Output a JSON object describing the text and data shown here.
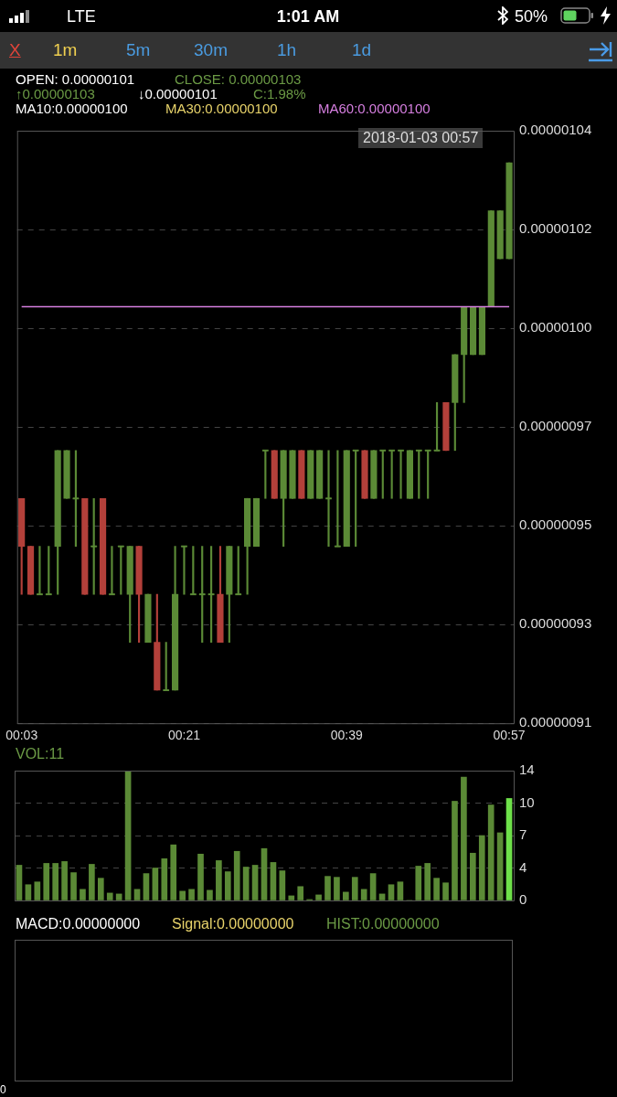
{
  "chart_data": [
    {
      "type": "candlestick",
      "categories": [
        "00:03",
        null,
        null,
        null,
        null,
        null,
        null,
        null,
        null,
        null,
        null,
        null,
        null,
        null,
        null,
        null,
        null,
        null,
        "00:21",
        null,
        null,
        null,
        null,
        null,
        null,
        null,
        null,
        null,
        null,
        null,
        null,
        null,
        null,
        null,
        null,
        null,
        "00:39",
        null,
        null,
        null,
        null,
        null,
        null,
        null,
        null,
        null,
        null,
        null,
        null,
        null,
        null,
        null,
        null,
        null,
        "00:57"
      ],
      "series": [
        {
          "type": "candlestick",
          "ohlc": [
            [
              9.6e-07,
              9.6e-07,
              9.4e-07,
              9.5e-07
            ],
            [
              9.5e-07,
              9.5e-07,
              9.4e-07,
              9.4e-07
            ],
            [
              9.4e-07,
              9.5e-07,
              9.4e-07,
              9.4e-07
            ],
            [
              9.4e-07,
              9.5e-07,
              9.4e-07,
              9.4e-07
            ],
            [
              9.5e-07,
              9.7e-07,
              9.4e-07,
              9.7e-07
            ],
            [
              9.6e-07,
              9.7e-07,
              9.6e-07,
              9.7e-07
            ],
            [
              9.6e-07,
              9.7e-07,
              9.5e-07,
              9.6e-07
            ],
            [
              9.6e-07,
              9.6e-07,
              9.4e-07,
              9.4e-07
            ],
            [
              9.5e-07,
              9.6e-07,
              9.4e-07,
              9.5e-07
            ],
            [
              9.6e-07,
              9.6e-07,
              9.4e-07,
              9.4e-07
            ],
            [
              9.4e-07,
              9.5e-07,
              9.4e-07,
              9.4e-07
            ],
            [
              9.5e-07,
              9.5e-07,
              9.4e-07,
              9.5e-07
            ],
            [
              9.4e-07,
              9.5e-07,
              9.3e-07,
              9.5e-07
            ],
            [
              9.5e-07,
              9.5e-07,
              9.3e-07,
              9.4e-07
            ],
            [
              9.3e-07,
              9.4e-07,
              9.3e-07,
              9.4e-07
            ],
            [
              9.3e-07,
              9.4e-07,
              9.2e-07,
              9.2e-07
            ],
            [
              9.2e-07,
              9.3e-07,
              9.2e-07,
              9.2e-07
            ],
            [
              9.2e-07,
              9.5e-07,
              9.2e-07,
              9.4e-07
            ],
            [
              9.5e-07,
              9.5e-07,
              9.4e-07,
              9.5e-07
            ],
            [
              9.4e-07,
              9.5e-07,
              9.4e-07,
              9.4e-07
            ],
            [
              9.4e-07,
              9.5e-07,
              9.3e-07,
              9.4e-07
            ],
            [
              9.4e-07,
              9.5e-07,
              9.3e-07,
              9.4e-07
            ],
            [
              9.4e-07,
              9.5e-07,
              9.3e-07,
              9.3e-07
            ],
            [
              9.4e-07,
              9.5e-07,
              9.3e-07,
              9.5e-07
            ],
            [
              9.4e-07,
              9.5e-07,
              9.4e-07,
              9.4e-07
            ],
            [
              9.5e-07,
              9.6e-07,
              9.4e-07,
              9.6e-07
            ],
            [
              9.5e-07,
              9.6e-07,
              9.5e-07,
              9.6e-07
            ],
            [
              9.7e-07,
              9.7e-07,
              9.6e-07,
              9.7e-07
            ],
            [
              9.7e-07,
              9.7e-07,
              9.6e-07,
              9.6e-07
            ],
            [
              9.6e-07,
              9.7e-07,
              9.5e-07,
              9.7e-07
            ],
            [
              9.6e-07,
              9.7e-07,
              9.6e-07,
              9.7e-07
            ],
            [
              9.7e-07,
              9.7e-07,
              9.6e-07,
              9.6e-07
            ],
            [
              9.6e-07,
              9.7e-07,
              9.6e-07,
              9.7e-07
            ],
            [
              9.6e-07,
              9.7e-07,
              9.6e-07,
              9.7e-07
            ],
            [
              9.6e-07,
              9.7e-07,
              9.5e-07,
              9.6e-07
            ],
            [
              9.5e-07,
              9.7e-07,
              9.5e-07,
              9.5e-07
            ],
            [
              9.5e-07,
              9.7e-07,
              9.5e-07,
              9.7e-07
            ],
            [
              9.7e-07,
              9.7e-07,
              9.5e-07,
              9.7e-07
            ],
            [
              9.7e-07,
              9.7e-07,
              9.6e-07,
              9.6e-07
            ],
            [
              9.6e-07,
              9.7e-07,
              9.6e-07,
              9.7e-07
            ],
            [
              9.7e-07,
              9.7e-07,
              9.6e-07,
              9.7e-07
            ],
            [
              9.7e-07,
              9.7e-07,
              9.6e-07,
              9.7e-07
            ],
            [
              9.7e-07,
              9.7e-07,
              9.6e-07,
              9.7e-07
            ],
            [
              9.6e-07,
              9.7e-07,
              9.6e-07,
              9.7e-07
            ],
            [
              9.7e-07,
              9.7e-07,
              9.6e-07,
              9.7e-07
            ],
            [
              9.7e-07,
              9.7e-07,
              9.6e-07,
              9.7e-07
            ],
            [
              9.7e-07,
              9.8e-07,
              9.7e-07,
              9.7e-07
            ],
            [
              9.8e-07,
              9.8e-07,
              9.7e-07,
              9.7e-07
            ],
            [
              9.8e-07,
              9.9e-07,
              9.7e-07,
              9.9e-07
            ],
            [
              9.9e-07,
              1e-06,
              9.8e-07,
              1e-06
            ],
            [
              9.9e-07,
              1e-06,
              9.9e-07,
              1e-06
            ],
            [
              9.9e-07,
              1e-06,
              9.9e-07,
              1e-06
            ],
            [
              1e-06,
              1.02e-06,
              1e-06,
              1.02e-06
            ],
            [
              1.01e-06,
              1.02e-06,
              1.01e-06,
              1.02e-06
            ],
            [
              1.01e-06,
              1.03e-06,
              1.01e-06,
              1.03e-06
            ]
          ],
          "colors": [
            "#b3403a",
            "#b3403a",
            "#5b8a36",
            "#5b8a36",
            "#5b8a36",
            "#5b8a36",
            "#5b8a36",
            "#b3403a",
            "#5b8a36",
            "#b3403a",
            "#5b8a36",
            "#5b8a36",
            "#5b8a36",
            "#b3403a",
            "#5b8a36",
            "#b3403a",
            "#5b8a36",
            "#5b8a36",
            "#5b8a36",
            "#5b8a36",
            "#5b8a36",
            "#5b8a36",
            "#b3403a",
            "#5b8a36",
            "#5b8a36",
            "#5b8a36",
            "#5b8a36",
            "#5b8a36",
            "#b3403a",
            "#5b8a36",
            "#5b8a36",
            "#b3403a",
            "#5b8a36",
            "#5b8a36",
            "#5b8a36",
            "#5b8a36",
            "#5b8a36",
            "#5b8a36",
            "#b3403a",
            "#5b8a36",
            "#5b8a36",
            "#5b8a36",
            "#5b8a36",
            "#5b8a36",
            "#5b8a36",
            "#5b8a36",
            "#5b8a36",
            "#b3403a",
            "#5b8a36",
            "#5b8a36",
            "#5b8a36",
            "#5b8a36",
            "#5b8a36",
            "#5b8a36",
            "#5b8a36"
          ]
        },
        {
          "type": "line",
          "color": "#d67fe0",
          "values": [
            1e-06,
            1e-06,
            1e-06,
            1e-06,
            1e-06,
            1e-06,
            1e-06,
            1e-06,
            1e-06,
            1e-06,
            1e-06,
            1e-06,
            1e-06,
            1e-06,
            1e-06,
            1e-06,
            1e-06,
            1e-06,
            1e-06,
            1e-06,
            1e-06,
            1e-06,
            1e-06,
            1e-06,
            1e-06,
            1e-06,
            1e-06,
            1e-06,
            1e-06,
            1e-06,
            1e-06,
            1e-06,
            1e-06,
            1e-06,
            1e-06,
            1e-06,
            1e-06,
            1e-06,
            1e-06,
            1e-06,
            1e-06,
            1e-06,
            1e-06,
            1e-06,
            1e-06,
            1e-06,
            1e-06,
            1e-06,
            1e-06,
            1e-06,
            1e-06,
            1e-06,
            1e-06,
            1e-06,
            1e-06
          ]
        }
      ],
      "ylim": [
        9.131e-07,
        1.0367e-06
      ],
      "yticks": [
        {
          "value": 9.131e-07,
          "label": "0.00000091"
        },
        {
          "value": 9.337e-07,
          "label": "0.00000093"
        },
        {
          "value": 9.543e-07,
          "label": "0.00000095"
        },
        {
          "value": 9.749e-07,
          "label": "0.00000097"
        },
        {
          "value": 9.955e-07,
          "label": "0.00000100"
        },
        {
          "value": 1.0161e-06,
          "label": "0.00000102"
        },
        {
          "value": 1.0367e-06,
          "label": "0.00000104"
        }
      ],
      "grid": "y",
      "annotations": [
        "LTE",
        "1:01 AM",
        "50%",
        "X",
        "1m",
        "5m",
        "30m",
        "1h",
        "1d",
        "OPEN: 0.00000101",
        "CLOSE: 0.00000103",
        "↑0.00000103",
        "↓0.00000101",
        "C:1.98%",
        "MA10:0.00000100",
        "MA30:0.00000100",
        "MA60:0.00000100",
        "2018-01-03 00:57"
      ]
    },
    {
      "type": "bar",
      "categories": [
        null,
        null,
        null,
        null,
        null,
        null,
        null,
        null,
        null,
        null,
        null,
        null,
        null,
        null,
        null,
        null,
        null,
        null,
        null,
        null,
        null,
        null,
        null,
        null,
        null,
        null,
        null,
        null,
        null,
        null,
        null,
        null,
        null,
        null,
        null,
        null,
        null,
        null,
        null,
        null,
        null,
        null,
        null,
        null,
        null,
        null,
        null,
        null,
        null,
        null,
        null,
        null,
        null,
        null,
        null
      ],
      "values": [
        3.8,
        1.7,
        2,
        4,
        4,
        4.2,
        3,
        1.2,
        3.9,
        2.4,
        0.8,
        0.7,
        14,
        1.2,
        2.9,
        3.5,
        4.5,
        6,
        1,
        1.2,
        5,
        1.1,
        4.3,
        3.1,
        5.3,
        3.6,
        3.8,
        5.6,
        4.1,
        3.2,
        0.5,
        1.5,
        0.1,
        0.6,
        2.6,
        2.5,
        0.9,
        2.5,
        1.2,
        2.9,
        0.7,
        1.7,
        2,
        0,
        3.7,
        4,
        2.4,
        1.9,
        10.7,
        13.3,
        5.1,
        7,
        10.3,
        7.3,
        11
      ],
      "colors": [
        "#5b8a36",
        "#5b8a36",
        "#5b8a36",
        "#5b8a36",
        "#5b8a36",
        "#5b8a36",
        "#5b8a36",
        "#5b8a36",
        "#5b8a36",
        "#5b8a36",
        "#5b8a36",
        "#5b8a36",
        "#5b8a36",
        "#5b8a36",
        "#5b8a36",
        "#5b8a36",
        "#5b8a36",
        "#5b8a36",
        "#5b8a36",
        "#5b8a36",
        "#5b8a36",
        "#5b8a36",
        "#5b8a36",
        "#5b8a36",
        "#5b8a36",
        "#5b8a36",
        "#5b8a36",
        "#5b8a36",
        "#5b8a36",
        "#5b8a36",
        "#5b8a36",
        "#5b8a36",
        "#5b8a36",
        "#5b8a36",
        "#5b8a36",
        "#5b8a36",
        "#5b8a36",
        "#5b8a36",
        "#5b8a36",
        "#5b8a36",
        "#5b8a36",
        "#5b8a36",
        "#5b8a36",
        "#5b8a36",
        "#5b8a36",
        "#5b8a36",
        "#5b8a36",
        "#5b8a36",
        "#5b8a36",
        "#5b8a36",
        "#5b8a36",
        "#5b8a36",
        "#5b8a36",
        "#5b8a36",
        "#6ee04a"
      ],
      "ylim": [
        0,
        14
      ],
      "yticks": [
        0,
        {
          "value": 3.5,
          "label": "4"
        },
        7,
        {
          "value": 10.5,
          "label": "10"
        },
        14
      ],
      "grid": "y",
      "tick_labels": "y",
      "annotations": [
        "VOL:11"
      ]
    },
    {
      "type": "other",
      "annotations": [
        "MACD:0.00000000",
        "Signal:0.00000000",
        "HIST:0.00000000",
        "0"
      ]
    }
  ]
}
